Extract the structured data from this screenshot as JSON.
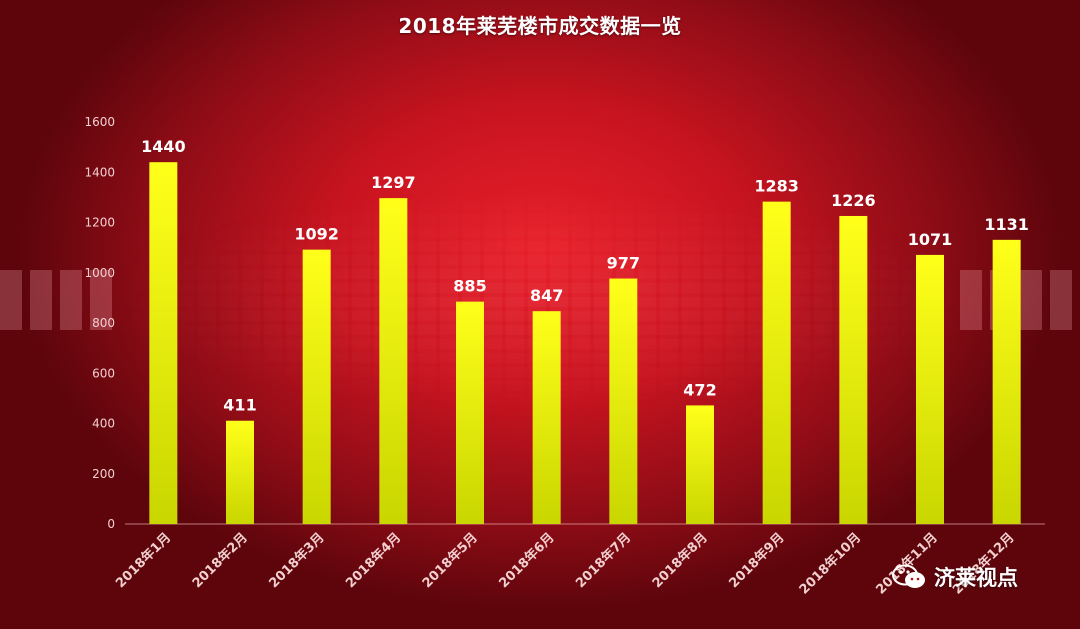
{
  "title": "2018年莱芜楼市成交数据一览",
  "brand": {
    "name": "济莱视点",
    "icon": "wechat-icon"
  },
  "colors": {
    "bar_top": "#ffff1a",
    "bar_bottom": "#c9d600",
    "axis_text": "#f2d0d0",
    "value_text": "#ffffff"
  },
  "chart_data": {
    "type": "bar",
    "title": "2018年莱芜楼市成交数据一览",
    "xlabel": "",
    "ylabel": "",
    "categories": [
      "2018年1月",
      "2018年2月",
      "2018年3月",
      "2018年4月",
      "2018年5月",
      "2018年6月",
      "2018年7月",
      "2018年8月",
      "2018年9月",
      "2018年10月",
      "2018年11月",
      "2018年12月"
    ],
    "values": [
      1440,
      411,
      1092,
      1297,
      885,
      847,
      977,
      472,
      1283,
      1226,
      1071,
      1131
    ],
    "ylim": [
      0,
      1600
    ],
    "yticks": [
      0,
      200,
      400,
      600,
      800,
      1000,
      1200,
      1400,
      1600
    ],
    "grid": false,
    "legend": "none"
  }
}
